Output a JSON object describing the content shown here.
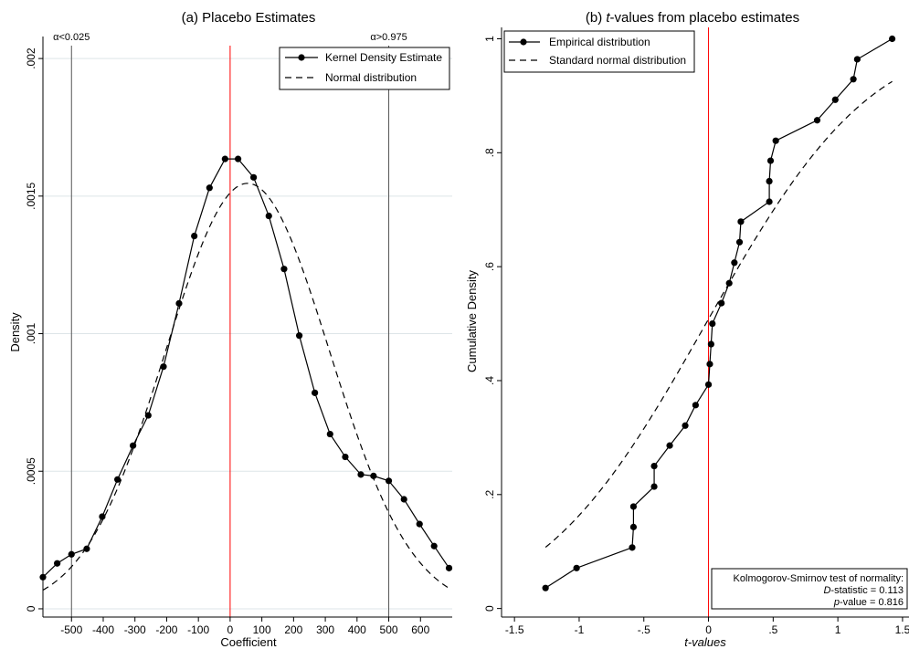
{
  "chart_data": [
    {
      "type": "line",
      "title": "(a) Placebo Estimates",
      "xlabel": "Coefficient",
      "ylabel": "Density",
      "xlim": [
        -590,
        700
      ],
      "ylim": [
        -3e-05,
        0.00208
      ],
      "xticks": [
        -500,
        -400,
        -300,
        -200,
        -100,
        0,
        100,
        200,
        300,
        400,
        500,
        600
      ],
      "xtick_labels": [
        "-500",
        "-400",
        "-300",
        "-200",
        "-100",
        "0",
        "100",
        "200",
        "300",
        "400",
        "500",
        "600"
      ],
      "yticks": [
        0,
        0.0005,
        0.001,
        0.0015,
        0.002
      ],
      "ytick_labels": [
        "0",
        ".0005",
        ".001",
        ".0015",
        ".002"
      ],
      "grid": true,
      "legend_position": "top-right",
      "vlines": [
        {
          "x": -500,
          "label": "α<0.025",
          "color": "#555555"
        },
        {
          "x": 0,
          "label": "",
          "color": "#ff0000"
        },
        {
          "x": 500,
          "label": "α>0.975",
          "color": "#555555"
        }
      ],
      "series": [
        {
          "name": "Kernel Density Estimate",
          "style": "solid-markers",
          "x": [
            -590,
            -545,
            -500,
            -452,
            -403,
            -355,
            -306,
            -258,
            -210,
            -161,
            -113,
            -65,
            -16,
            25,
            74,
            122,
            170,
            218,
            267,
            315,
            363,
            412,
            452,
            500,
            548,
            597,
            643,
            690
          ],
          "y": [
            0.000115,
            0.000165,
            0.000198,
            0.000218,
            0.000335,
            0.00047,
            0.000593,
            0.000703,
            0.00088,
            0.00111,
            0.001355,
            0.00153,
            0.001635,
            0.001635,
            0.001568,
            0.001428,
            0.001235,
            0.000993,
            0.000785,
            0.000635,
            0.000552,
            0.000488,
            0.000483,
            0.000465,
            0.000398,
            0.000308,
            0.000228,
            0.000148
          ]
        },
        {
          "name": "Normal distribution",
          "style": "dashed",
          "mean": 55,
          "sd": 258,
          "x_range": [
            -590,
            690
          ]
        }
      ]
    },
    {
      "type": "line",
      "title_prefix": "(b) ",
      "title_italic": "t",
      "title_suffix": "-values from placebo estimates",
      "xlabel": "t-values",
      "ylabel": "Cumulative Density",
      "xlim": [
        -1.6,
        1.55
      ],
      "ylim": [
        -0.015,
        1.02
      ],
      "xticks": [
        -1.5,
        -1,
        -0.5,
        0,
        0.5,
        1,
        1.5
      ],
      "xtick_labels": [
        "-1.5",
        "-1",
        "-.5",
        "0",
        ".5",
        "1",
        "1.5"
      ],
      "yticks": [
        0,
        0.2,
        0.4,
        0.6,
        0.8,
        1
      ],
      "ytick_labels": [
        "0",
        ".2",
        ".4",
        ".6",
        ".8",
        "1"
      ],
      "grid": false,
      "legend_position": "top-left",
      "vlines": [
        {
          "x": 0,
          "color": "#ff0000"
        }
      ],
      "series": [
        {
          "name": "Empirical distribution",
          "style": "solid-markers",
          "x": [
            -1.26,
            -1.02,
            -0.59,
            -0.58,
            -0.58,
            -0.42,
            -0.42,
            -0.3,
            -0.18,
            -0.1,
            0.0,
            0.01,
            0.02,
            0.03,
            0.1,
            0.16,
            0.2,
            0.24,
            0.25,
            0.47,
            0.47,
            0.48,
            0.52,
            0.84,
            0.98,
            1.12,
            1.15,
            1.42
          ],
          "y": [
            0.036,
            0.071,
            0.107,
            0.143,
            0.179,
            0.214,
            0.25,
            0.286,
            0.321,
            0.357,
            0.393,
            0.429,
            0.464,
            0.5,
            0.536,
            0.571,
            0.607,
            0.643,
            0.679,
            0.714,
            0.75,
            0.786,
            0.821,
            0.857,
            0.893,
            0.929,
            0.964,
            1.0
          ]
        },
        {
          "name": "Standard normal distribution",
          "style": "dashed",
          "mean": -0.02,
          "sd": 1.0,
          "x_range": [
            -1.26,
            1.42
          ]
        }
      ],
      "annotation": {
        "line1": "Kolmogorov-Smirnov test of normality:",
        "line2_italic": "D",
        "line2_rest": "-statistic = 0.113",
        "line3_italic": "p",
        "line3_rest": "-value = 0.816"
      }
    }
  ]
}
